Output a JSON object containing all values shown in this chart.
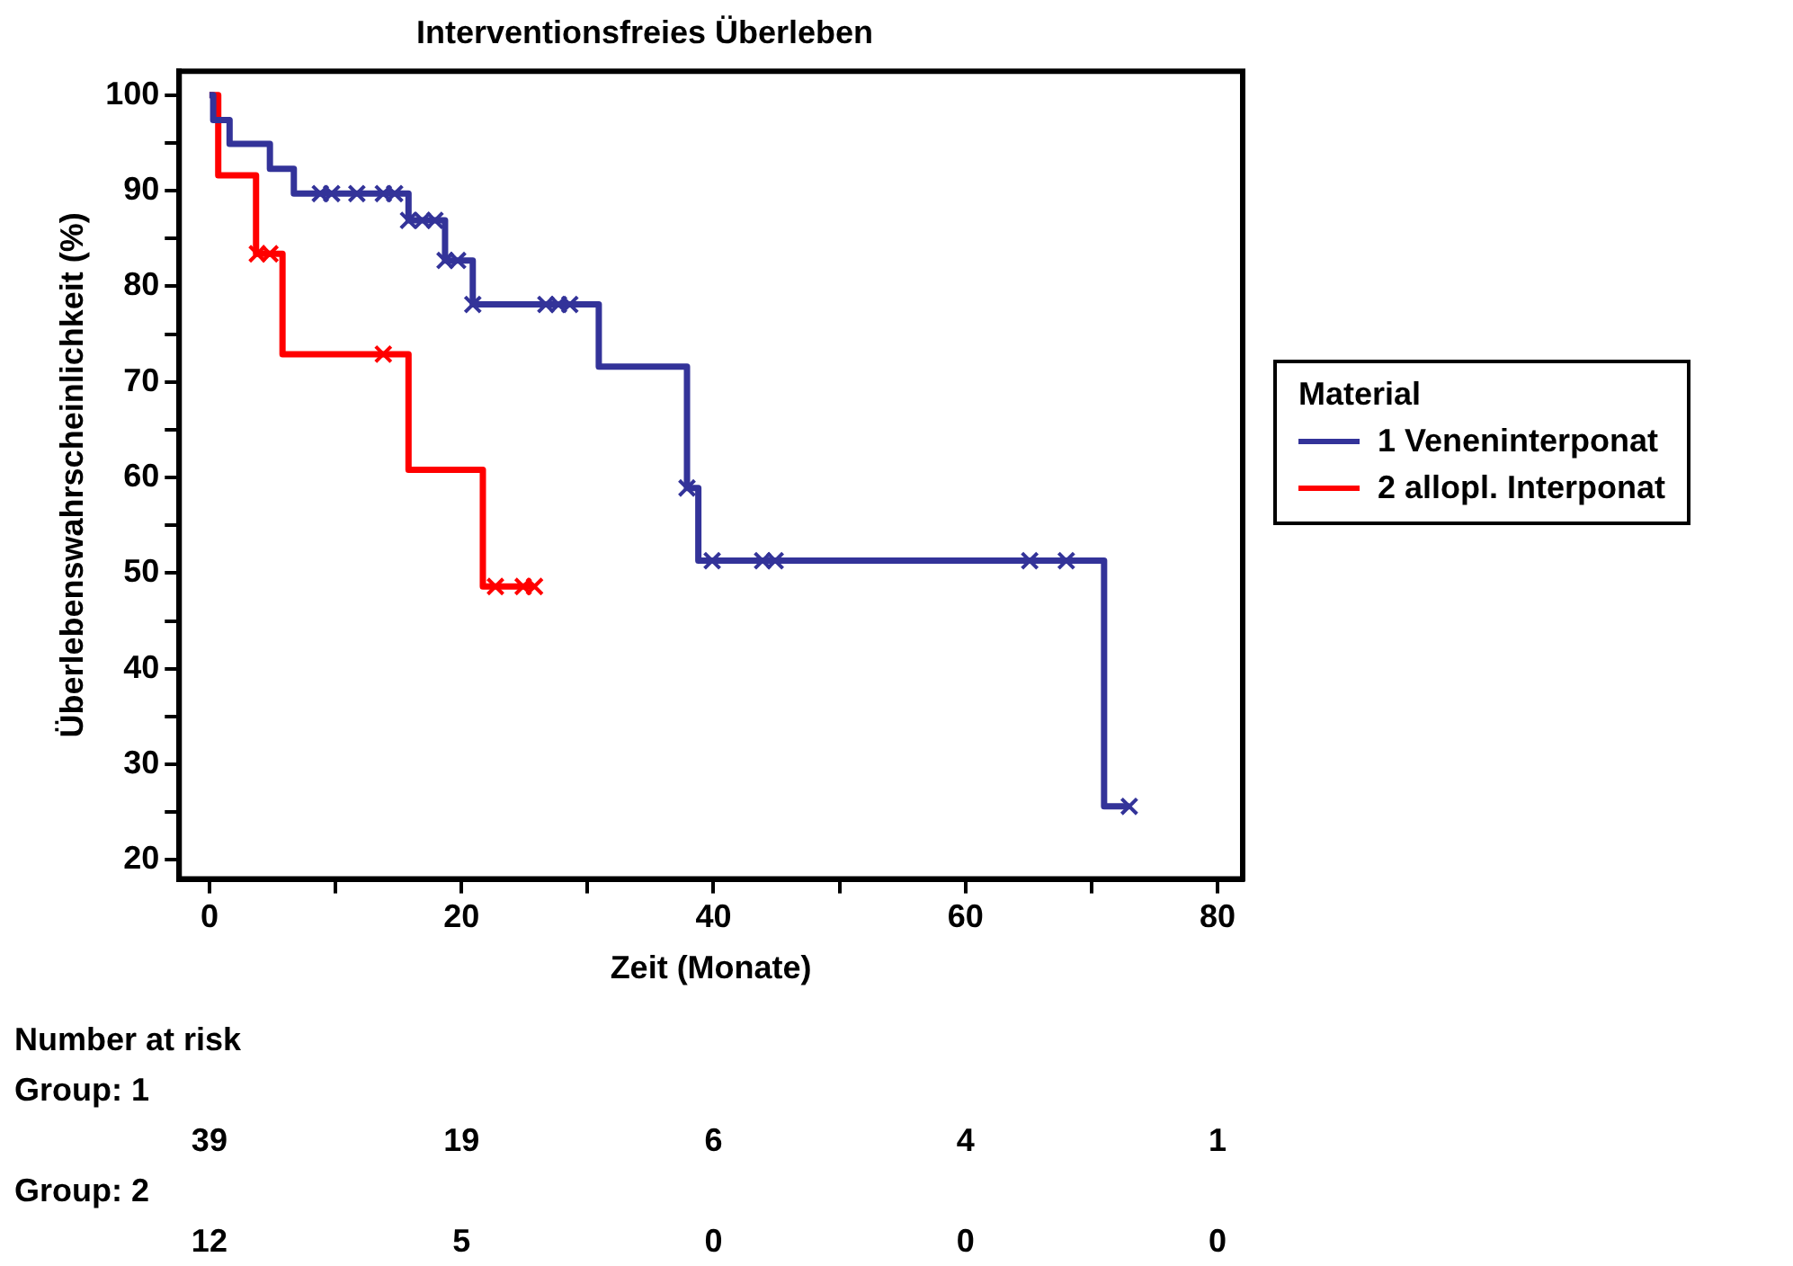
{
  "chart_data": {
    "type": "step",
    "title": "Interventionsfreies Überleben",
    "xlabel": "Zeit (Monate)",
    "ylabel": "Überlebenswahrscheinlichkeit (%)",
    "legend_title": "Material",
    "legend": "right",
    "grid": false,
    "xlim": [
      -2.4,
      82
    ],
    "ylim": [
      18,
      102.5
    ],
    "xticks": [
      0,
      {
        "value": 10,
        "label": null
      },
      20,
      {
        "value": 30,
        "label": null
      },
      40,
      {
        "value": 50,
        "label": null
      },
      60,
      {
        "value": 70,
        "label": null
      },
      80
    ],
    "yticks": [
      20,
      {
        "value": 25,
        "label": null
      },
      30,
      {
        "value": 35,
        "label": null
      },
      40,
      {
        "value": 45,
        "label": null
      },
      50,
      {
        "value": 55,
        "label": null
      },
      60,
      {
        "value": 65,
        "label": null
      },
      70,
      {
        "value": 75,
        "label": null
      },
      80,
      {
        "value": 85,
        "label": null
      },
      90,
      {
        "value": 95,
        "label": null
      },
      100
    ],
    "series": [
      {
        "name": "1 Veneninterponat",
        "color": "#333399",
        "x": [
          0,
          0.3,
          1.6,
          4.8,
          6.7,
          15.8,
          18.7,
          20.9,
          30.9,
          37.9,
          38.8,
          71,
          73
        ],
        "values": [
          100,
          97.4,
          94.9,
          92.3,
          89.7,
          86.9,
          82.7,
          78.1,
          71.6,
          58.9,
          51.3,
          25.6,
          25.6
        ]
      },
      {
        "name": "2 allopl. Interponat",
        "color": "#ff0000",
        "x": [
          0,
          0.7,
          3.7,
          5.8,
          15.8,
          21.7,
          25.8
        ],
        "values": [
          100,
          91.6,
          83.4,
          72.9,
          60.8,
          48.6,
          48.6
        ]
      },
      {
        "type": "scatter",
        "marker": "cross",
        "color": "#333399",
        "x": [
          8.8,
          9.7,
          11.7,
          13.8,
          14.7,
          15.8,
          16.9,
          17.9,
          18.7,
          19.7,
          20.9,
          26.7,
          27.7,
          28.6,
          37.9,
          39.9,
          43.9,
          44.9,
          65.1,
          68.0,
          73
        ],
        "values": [
          89.7,
          89.7,
          89.7,
          89.7,
          89.7,
          86.9,
          86.9,
          86.9,
          82.7,
          82.7,
          78.1,
          78.1,
          78.1,
          78.1,
          58.9,
          51.3,
          51.3,
          51.3,
          51.3,
          51.3,
          25.6
        ]
      },
      {
        "type": "scatter",
        "marker": "cross",
        "color": "#ff0000",
        "x": [
          3.8,
          4.8,
          13.8,
          22.7,
          24.9,
          25.8
        ],
        "values": [
          83.4,
          83.4,
          72.9,
          48.6,
          48.6,
          48.6
        ]
      }
    ],
    "annotations": [
      "Number at risk",
      "Group: 1",
      "39",
      "19",
      "6",
      "4",
      "1",
      "Group: 2",
      "12",
      "5",
      "0",
      "0",
      "0"
    ]
  }
}
